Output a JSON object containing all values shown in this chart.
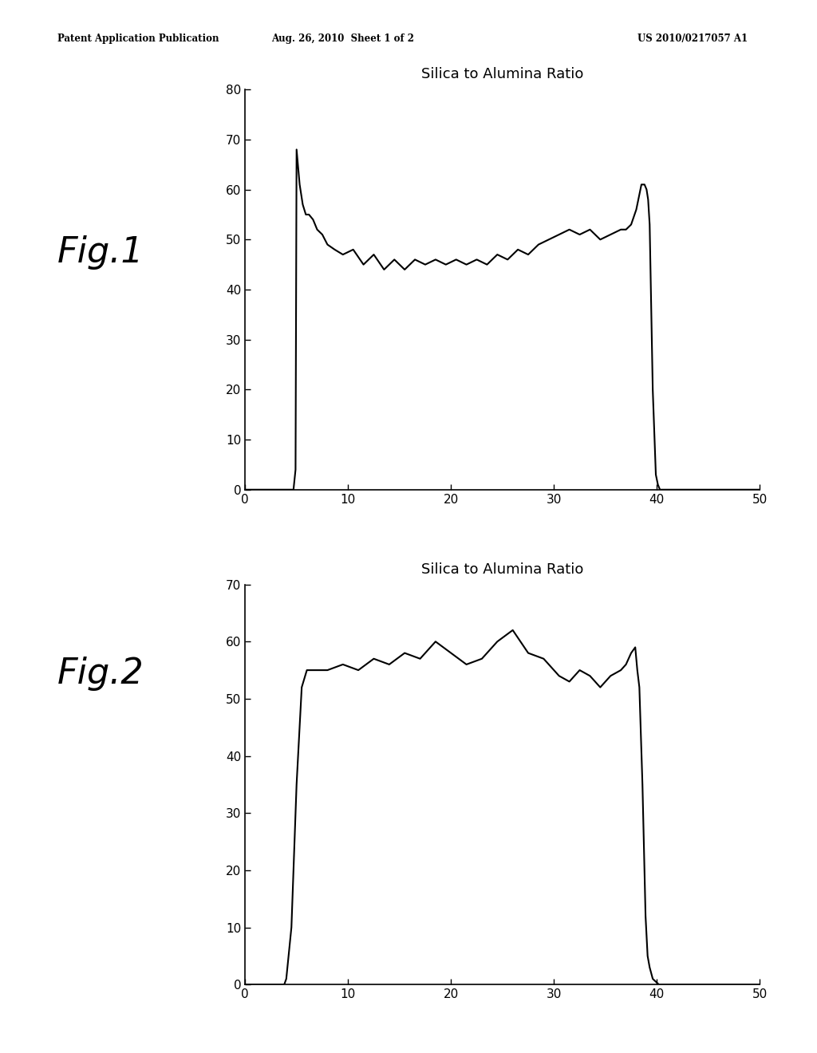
{
  "header_left": "Patent Application Publication",
  "header_center": "Aug. 26, 2010  Sheet 1 of 2",
  "header_right": "US 2010/0217057 A1",
  "fig1_label": "Fig.1",
  "fig2_label": "Fig.2",
  "chart_title": "Silica to Alumina Ratio",
  "fig1_ylim": [
    0,
    80
  ],
  "fig1_yticks": [
    0,
    10,
    20,
    30,
    40,
    50,
    60,
    70,
    80
  ],
  "fig2_ylim": [
    0,
    70
  ],
  "fig2_yticks": [
    0,
    10,
    20,
    30,
    40,
    50,
    60,
    70
  ],
  "xlim": [
    0,
    50
  ],
  "xticks": [
    0,
    10,
    20,
    30,
    40,
    50
  ],
  "background_color": "#ffffff",
  "line_color": "#000000",
  "text_color": "#000000"
}
